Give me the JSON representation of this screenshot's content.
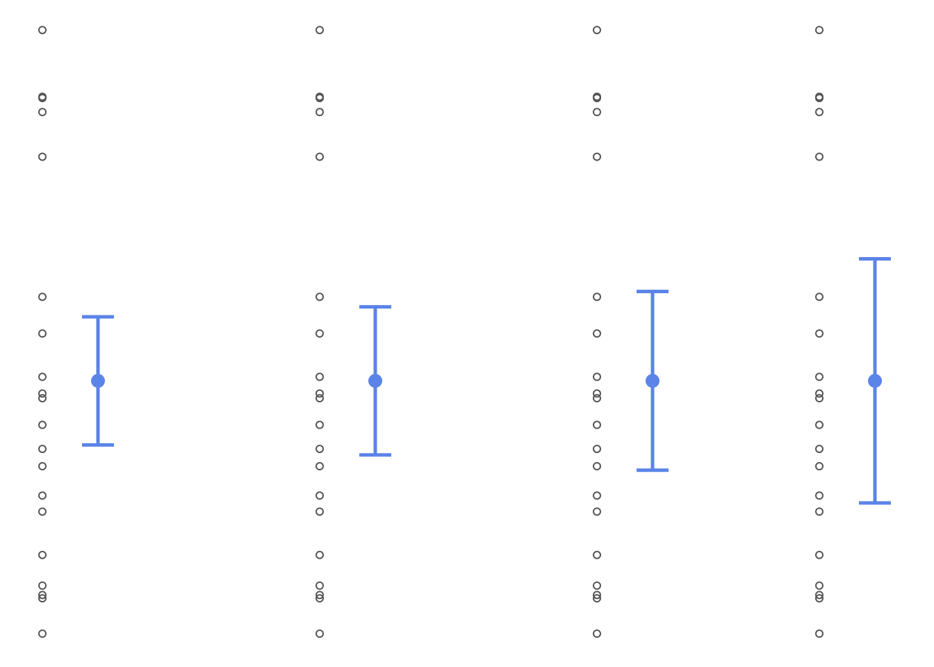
{
  "chart_data": {
    "type": "scatter",
    "title": "",
    "xlabel": "",
    "ylabel": "",
    "grid": false,
    "legend": "none",
    "ylim": [
      0,
      1
    ],
    "colors": {
      "points": "#555555",
      "summary": "#5B84E8"
    },
    "groups": [
      {
        "raw_values": [
          0.955,
          0.855,
          0.853,
          0.832,
          0.765,
          0.555,
          0.5,
          0.435,
          0.41,
          0.403,
          0.363,
          0.327,
          0.301,
          0.257,
          0.233,
          0.168,
          0.122,
          0.108,
          0.103,
          0.05
        ],
        "mean": 0.429,
        "ci_low": 0.333,
        "ci_high": 0.525
      },
      {
        "raw_values": [
          0.955,
          0.855,
          0.853,
          0.832,
          0.765,
          0.555,
          0.5,
          0.435,
          0.41,
          0.403,
          0.363,
          0.327,
          0.301,
          0.257,
          0.233,
          0.168,
          0.122,
          0.108,
          0.103,
          0.05
        ],
        "mean": 0.429,
        "ci_low": 0.318,
        "ci_high": 0.54
      },
      {
        "raw_values": [
          0.955,
          0.855,
          0.853,
          0.832,
          0.765,
          0.555,
          0.5,
          0.435,
          0.41,
          0.403,
          0.363,
          0.327,
          0.301,
          0.257,
          0.233,
          0.168,
          0.122,
          0.108,
          0.103,
          0.05
        ],
        "mean": 0.429,
        "ci_low": 0.295,
        "ci_high": 0.563
      },
      {
        "raw_values": [
          0.955,
          0.855,
          0.853,
          0.832,
          0.765,
          0.555,
          0.5,
          0.435,
          0.41,
          0.403,
          0.363,
          0.327,
          0.301,
          0.257,
          0.233,
          0.168,
          0.122,
          0.108,
          0.103,
          0.05
        ],
        "mean": 0.429,
        "ci_low": 0.246,
        "ci_high": 0.612
      }
    ]
  }
}
